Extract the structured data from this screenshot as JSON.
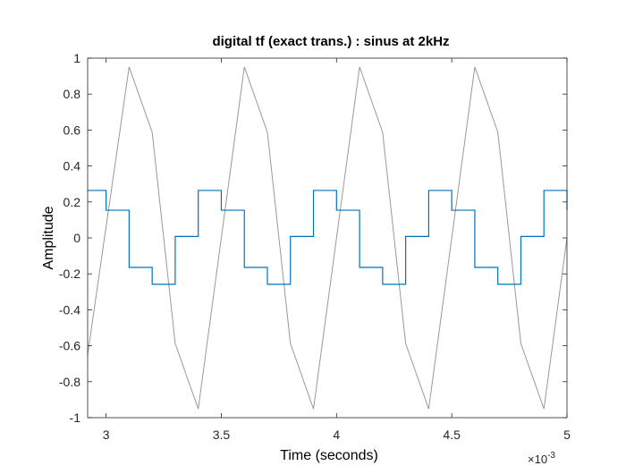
{
  "chart_data": {
    "type": "line",
    "title": "digital tf (exact trans.) : sinus at 2kHz",
    "xlabel": "Time (seconds)",
    "ylabel": "Amplitude",
    "x_exponent_label": "×10",
    "x_exponent_power": "-3",
    "xlim": [
      2.92,
      5.0
    ],
    "ylim": [
      -1,
      1
    ],
    "x_ticks": [
      3,
      3.5,
      4,
      4.5,
      5
    ],
    "x_tick_labels": [
      "3",
      "3.5",
      "4",
      "4.5",
      "5"
    ],
    "y_ticks": [
      -1,
      -0.8,
      -0.6,
      -0.4,
      -0.2,
      0,
      0.2,
      0.4,
      0.6,
      0.8,
      1
    ],
    "y_tick_labels": [
      "-1",
      "-0.8",
      "-0.6",
      "-0.4",
      "-0.2",
      "0",
      "0.2",
      "0.4",
      "0.6",
      "0.8",
      "1"
    ],
    "grid": false,
    "series": [
      {
        "style": "line",
        "color": "#999999",
        "x": [
          2.92,
          3.1,
          3.2,
          3.3,
          3.4,
          3.6,
          3.7,
          3.8,
          3.9,
          4.1,
          4.2,
          4.3,
          4.4,
          4.6,
          4.7,
          4.8,
          4.9,
          5.0
        ],
        "y": [
          -0.65,
          0.951,
          0.588,
          -0.588,
          -0.951,
          0.951,
          0.588,
          -0.588,
          -0.951,
          0.951,
          0.588,
          -0.588,
          -0.951,
          0.951,
          0.588,
          -0.588,
          -0.951,
          0.0
        ]
      },
      {
        "style": "stairs",
        "color": "#0072BD",
        "x": [
          2.92,
          3.0,
          3.1,
          3.2,
          3.3,
          3.4,
          3.5,
          3.6,
          3.7,
          3.8,
          3.9,
          4.0,
          4.1,
          4.2,
          4.3,
          4.4,
          4.5,
          4.6,
          4.7,
          4.8,
          4.9,
          5.0
        ],
        "y": [
          0.264,
          0.154,
          -0.164,
          -0.258,
          0.008,
          0.264,
          0.154,
          -0.164,
          -0.258,
          0.008,
          0.264,
          0.154,
          -0.164,
          -0.258,
          0.008,
          0.264,
          0.154,
          -0.164,
          -0.258,
          0.008,
          0.264,
          0.154
        ]
      }
    ]
  }
}
